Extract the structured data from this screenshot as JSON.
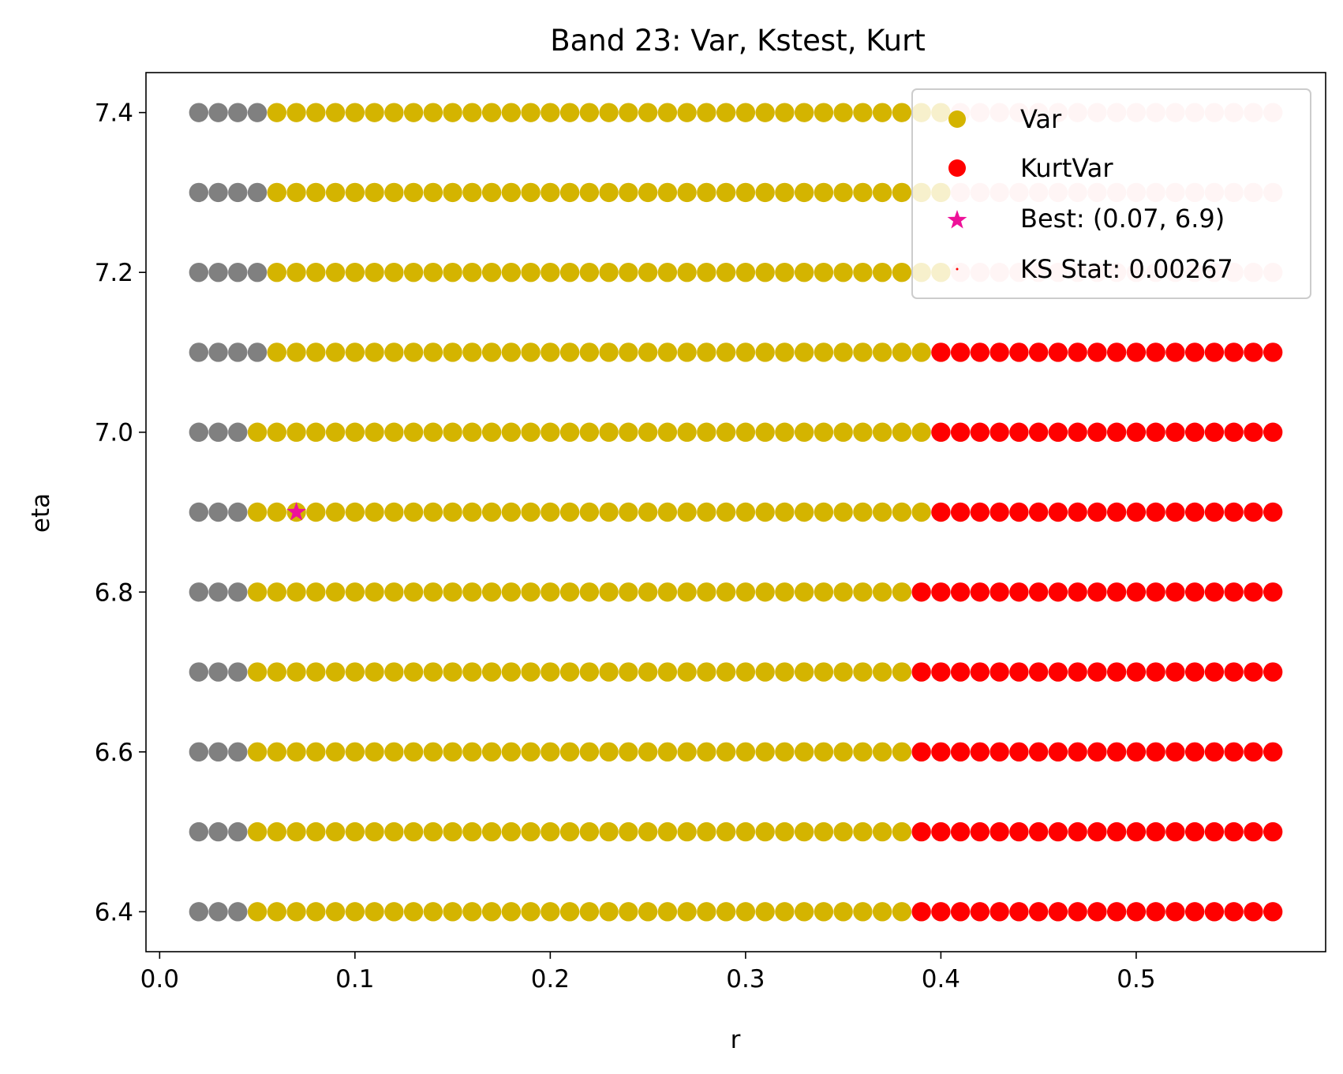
{
  "chart_data": {
    "type": "scatter",
    "title": "Band 23: Var, Kstest, Kurt",
    "xlabel": "r",
    "ylabel": "eta",
    "xlim": [
      -0.007,
      0.597
    ],
    "ylim": [
      6.35,
      7.45
    ],
    "xticks": [
      0.0,
      0.1,
      0.2,
      0.3,
      0.4,
      0.5
    ],
    "xtick_labels": [
      "0.0",
      "0.1",
      "0.2",
      "0.3",
      "0.4",
      "0.5"
    ],
    "yticks": [
      6.4,
      6.6,
      6.8,
      7.0,
      7.2,
      7.4
    ],
    "ytick_labels": [
      "6.4",
      "6.6",
      "6.8",
      "7.0",
      "7.2",
      "7.4"
    ],
    "grid": false,
    "r_values": [
      0.02,
      0.03,
      0.04,
      0.05,
      0.06,
      0.07,
      0.08,
      0.09,
      0.1,
      0.11,
      0.12,
      0.13,
      0.14,
      0.15,
      0.16,
      0.17,
      0.18,
      0.19,
      0.2,
      0.21,
      0.22,
      0.23,
      0.24,
      0.25,
      0.26,
      0.27,
      0.28,
      0.29,
      0.3,
      0.31,
      0.32,
      0.33,
      0.34,
      0.35,
      0.36,
      0.37,
      0.38,
      0.39,
      0.4,
      0.41,
      0.42,
      0.43,
      0.44,
      0.45,
      0.46,
      0.47,
      0.48,
      0.49,
      0.5,
      0.51,
      0.52,
      0.53,
      0.54,
      0.55,
      0.56,
      0.57
    ],
    "rows": [
      {
        "eta": 7.4,
        "gray_max_r": 0.05,
        "var_max_r": 0.4,
        "kurt_style": "faded"
      },
      {
        "eta": 7.3,
        "gray_max_r": 0.05,
        "var_max_r": 0.4,
        "kurt_style": "faded"
      },
      {
        "eta": 7.2,
        "gray_max_r": 0.05,
        "var_max_r": 0.4,
        "kurt_style": "faded"
      },
      {
        "eta": 7.1,
        "gray_max_r": 0.05,
        "var_max_r": 0.39,
        "kurt_style": "solid"
      },
      {
        "eta": 7.0,
        "gray_max_r": 0.04,
        "var_max_r": 0.39,
        "kurt_style": "solid"
      },
      {
        "eta": 6.9,
        "gray_max_r": 0.04,
        "var_max_r": 0.39,
        "kurt_style": "solid"
      },
      {
        "eta": 6.8,
        "gray_max_r": 0.04,
        "var_max_r": 0.38,
        "kurt_style": "solid"
      },
      {
        "eta": 6.7,
        "gray_max_r": 0.04,
        "var_max_r": 0.38,
        "kurt_style": "solid"
      },
      {
        "eta": 6.6,
        "gray_max_r": 0.04,
        "var_max_r": 0.38,
        "kurt_style": "solid"
      },
      {
        "eta": 6.5,
        "gray_max_r": 0.04,
        "var_max_r": 0.38,
        "kurt_style": "solid"
      },
      {
        "eta": 6.4,
        "gray_max_r": 0.04,
        "var_max_r": 0.38,
        "kurt_style": "solid"
      }
    ],
    "series": [
      {
        "name": "Var",
        "color": "#d4b400",
        "marker": "circle"
      },
      {
        "name": "KurtVar",
        "color": "#ff0000",
        "marker": "circle"
      },
      {
        "name": "Best: (0.07, 6.9)",
        "color": "#ee1199",
        "marker": "star",
        "x": 0.07,
        "y": 6.9
      },
      {
        "name": "KS Stat: 0.00267",
        "color": "#ff0000",
        "marker": "none"
      }
    ],
    "colors": {
      "gray": "#808080",
      "var": "#d4b400",
      "kurt": "#ff0000",
      "kurt_faded": "#ffcccc",
      "best": "#ee1199"
    },
    "legend_position": "top-right"
  }
}
